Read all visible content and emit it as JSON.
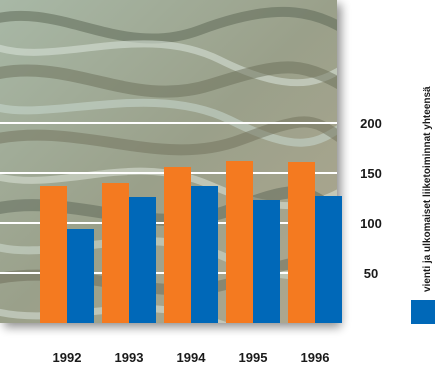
{
  "chart_data": {
    "type": "bar",
    "categories": [
      "1992",
      "1993",
      "1994",
      "1995",
      "1996"
    ],
    "series": [
      {
        "values": [
          137,
          140,
          156,
          162,
          161
        ]
      },
      {
        "name": "vienti ja ulkomaiset liiketoiminnat yhteensä",
        "values": [
          94,
          126,
          137,
          123,
          127
        ]
      }
    ],
    "yticks": [
      50,
      100,
      150,
      200
    ],
    "ylim": [
      0,
      250
    ],
    "grid": true,
    "legend_position": "right",
    "colors": {
      "series_1": "#f47a20",
      "series_2": "#0068b8",
      "grid": "#ffffff",
      "background": "marbled texture"
    }
  }
}
